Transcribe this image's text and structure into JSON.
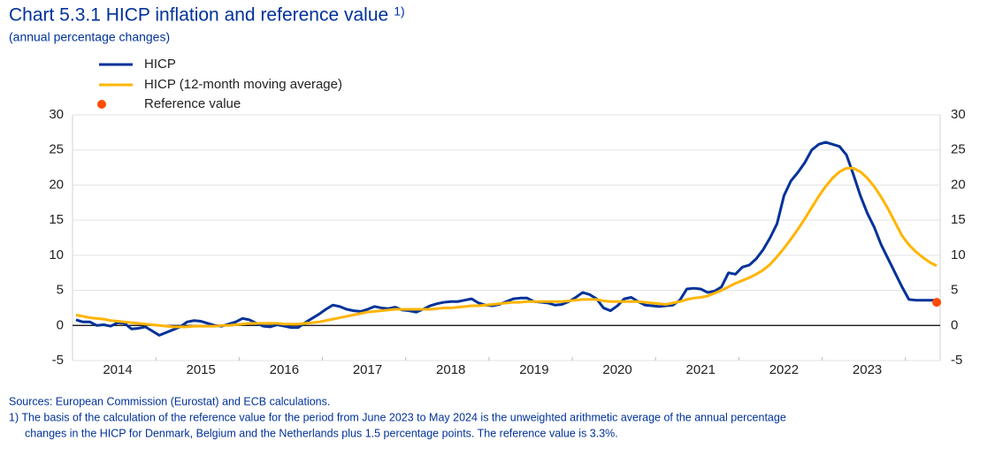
{
  "chart_data": {
    "type": "line",
    "title": "Chart 5.3.1 HICP inflation and reference value",
    "title_note": "1)",
    "subtitle": "(annual percentage changes)",
    "categories": [
      null,
      null,
      null,
      null,
      null,
      null,
      "2014",
      null,
      null,
      null,
      null,
      null,
      null,
      null,
      null,
      null,
      null,
      null,
      "2015",
      null,
      null,
      null,
      null,
      null,
      null,
      null,
      null,
      null,
      null,
      null,
      "2016",
      null,
      null,
      null,
      null,
      null,
      null,
      null,
      null,
      null,
      null,
      null,
      "2017",
      null,
      null,
      null,
      null,
      null,
      null,
      null,
      null,
      null,
      null,
      null,
      "2018",
      null,
      null,
      null,
      null,
      null,
      null,
      null,
      null,
      null,
      null,
      null,
      "2019",
      null,
      null,
      null,
      null,
      null,
      null,
      null,
      null,
      null,
      null,
      null,
      "2020",
      null,
      null,
      null,
      null,
      null,
      null,
      null,
      null,
      null,
      null,
      null,
      "2021",
      null,
      null,
      null,
      null,
      null,
      null,
      null,
      null,
      null,
      null,
      null,
      "2022",
      null,
      null,
      null,
      null,
      null,
      null,
      null,
      null,
      null,
      null,
      null,
      "2023",
      null,
      null,
      null,
      null,
      null,
      null,
      null,
      null,
      null,
      null
    ],
    "series": [
      {
        "name": "HICP",
        "color": "#003299",
        "values": [
          0.8,
          0.5,
          0.5,
          0.0,
          0.1,
          -0.1,
          0.4,
          0.3,
          -0.5,
          -0.4,
          -0.2,
          -0.8,
          -1.4,
          -1.0,
          -0.6,
          -0.2,
          0.5,
          0.7,
          0.6,
          0.3,
          0.0,
          -0.1,
          0.2,
          0.5,
          1.0,
          0.8,
          0.3,
          -0.1,
          -0.2,
          0.1,
          -0.1,
          -0.3,
          -0.3,
          0.4,
          1.0,
          1.6,
          2.3,
          2.9,
          2.7,
          2.3,
          2.1,
          2.0,
          2.3,
          2.7,
          2.5,
          2.4,
          2.6,
          2.2,
          2.1,
          1.9,
          2.3,
          2.8,
          3.1,
          3.3,
          3.4,
          3.4,
          3.6,
          3.8,
          3.2,
          2.9,
          2.8,
          3.0,
          3.4,
          3.8,
          3.9,
          3.9,
          3.4,
          3.3,
          3.2,
          2.9,
          3.0,
          3.4,
          4.0,
          4.7,
          4.4,
          3.8,
          2.5,
          2.1,
          2.8,
          3.8,
          4.0,
          3.4,
          2.9,
          2.8,
          2.7,
          2.8,
          2.9,
          3.6,
          5.2,
          5.3,
          5.2,
          4.7,
          4.9,
          5.5,
          7.5,
          7.3,
          8.3,
          8.6,
          9.5,
          10.8,
          12.5,
          14.5,
          18.5,
          20.6,
          21.8,
          23.2,
          25.0,
          25.8,
          26.1,
          25.8,
          25.5,
          24.3,
          21.5,
          18.5,
          16.0,
          14.0,
          11.5,
          9.5,
          7.5,
          5.5,
          3.7,
          3.6,
          3.6,
          3.6,
          3.6
        ]
      },
      {
        "name": "HICP (12-month moving average)",
        "color": "#ffb400",
        "values": [
          1.5,
          1.3,
          1.1,
          1.0,
          0.9,
          0.7,
          0.6,
          0.5,
          0.4,
          0.3,
          0.2,
          0.1,
          0.0,
          -0.1,
          -0.2,
          -0.2,
          -0.2,
          -0.1,
          -0.1,
          -0.1,
          -0.1,
          0.0,
          0.0,
          0.1,
          0.2,
          0.3,
          0.3,
          0.3,
          0.3,
          0.3,
          0.2,
          0.2,
          0.2,
          0.3,
          0.4,
          0.5,
          0.7,
          0.9,
          1.1,
          1.3,
          1.5,
          1.7,
          1.9,
          2.0,
          2.1,
          2.2,
          2.3,
          2.3,
          2.3,
          2.3,
          2.3,
          2.3,
          2.4,
          2.5,
          2.5,
          2.6,
          2.7,
          2.8,
          2.8,
          2.9,
          3.0,
          3.1,
          3.2,
          3.3,
          3.3,
          3.4,
          3.4,
          3.4,
          3.4,
          3.4,
          3.4,
          3.5,
          3.6,
          3.7,
          3.7,
          3.7,
          3.5,
          3.4,
          3.4,
          3.4,
          3.4,
          3.4,
          3.3,
          3.2,
          3.1,
          3.0,
          3.2,
          3.4,
          3.7,
          3.9,
          4.0,
          4.2,
          4.6,
          5.0,
          5.5,
          6.0,
          6.4,
          6.8,
          7.3,
          7.9,
          8.7,
          9.8,
          11.0,
          12.3,
          13.7,
          15.2,
          16.8,
          18.4,
          19.8,
          21.0,
          21.9,
          22.4,
          22.4,
          21.9,
          21.0,
          19.8,
          18.3,
          16.6,
          14.7,
          12.8,
          11.5,
          10.5,
          9.7,
          9.0,
          8.5
        ]
      },
      {
        "name": "Reference value",
        "color": "#ff4b00",
        "marker": "dot",
        "values": [
          null,
          null,
          null,
          null,
          null,
          null,
          null,
          null,
          null,
          null,
          null,
          null,
          null,
          null,
          null,
          null,
          null,
          null,
          null,
          null,
          null,
          null,
          null,
          null,
          null,
          null,
          null,
          null,
          null,
          null,
          null,
          null,
          null,
          null,
          null,
          null,
          null,
          null,
          null,
          null,
          null,
          null,
          null,
          null,
          null,
          null,
          null,
          null,
          null,
          null,
          null,
          null,
          null,
          null,
          null,
          null,
          null,
          null,
          null,
          null,
          null,
          null,
          null,
          null,
          null,
          null,
          null,
          null,
          null,
          null,
          null,
          null,
          null,
          null,
          null,
          null,
          null,
          null,
          null,
          null,
          null,
          null,
          null,
          null,
          null,
          null,
          null,
          null,
          null,
          null,
          null,
          null,
          null,
          null,
          null,
          null,
          null,
          null,
          null,
          null,
          null,
          null,
          null,
          null,
          null,
          null,
          null,
          null,
          null,
          null,
          null,
          null,
          null,
          null,
          null,
          null,
          null,
          null,
          null,
          null,
          null,
          null,
          null,
          null,
          3.3
        ]
      }
    ],
    "ylim": [
      -5,
      30
    ],
    "yticks": [
      -5,
      0,
      5,
      10,
      15,
      20,
      25,
      30
    ],
    "y2lim": [
      -5,
      30
    ],
    "y2ticks": [
      -5,
      0,
      5,
      10,
      15,
      20,
      25,
      30
    ],
    "grid": true,
    "sources": "Sources: European Commission (Eurostat) and ECB calculations.",
    "note_line1": "1) The basis of the calculation of the reference value for the period from June 2023 to May 2024 is the unweighted arithmetic average of the annual percentage",
    "note_line2": "changes in the HICP for Denmark, Belgium and the Netherlands plus 1.5 percentage points. The reference value is 3.3%."
  }
}
